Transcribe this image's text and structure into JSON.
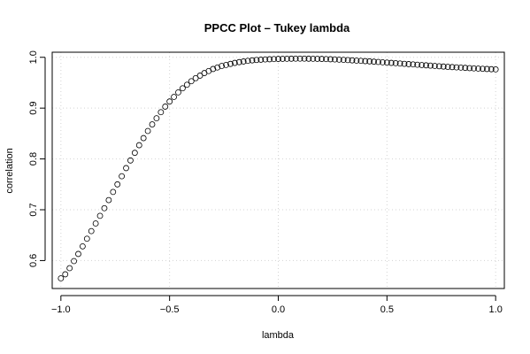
{
  "chart_data": {
    "type": "scatter",
    "title": "PPCC Plot – Tukey lambda",
    "xlabel": "lambda",
    "ylabel": "correlation",
    "xlim": [
      -1.04,
      1.04
    ],
    "ylim": [
      0.545,
      1.01
    ],
    "x_ticks": [
      -1.0,
      -0.5,
      0.0,
      0.5,
      1.0
    ],
    "x_tick_labels": [
      "−1.0",
      "−0.5",
      "0.0",
      "0.5",
      "1.0"
    ],
    "y_ticks": [
      0.6,
      0.7,
      0.8,
      0.9,
      1.0
    ],
    "y_tick_labels": [
      "0.6",
      "0.7",
      "0.8",
      "0.9",
      "1.0"
    ],
    "grid": true,
    "marker": "open-circle",
    "series": [
      {
        "x": [
          -1.0,
          -0.98,
          -0.96,
          -0.94,
          -0.92,
          -0.9,
          -0.88,
          -0.86,
          -0.84,
          -0.82,
          -0.8,
          -0.78,
          -0.76,
          -0.74,
          -0.72,
          -0.7,
          -0.68,
          -0.66,
          -0.64,
          -0.62,
          -0.6,
          -0.58,
          -0.56,
          -0.54,
          -0.52,
          -0.5,
          -0.48,
          -0.46,
          -0.44,
          -0.42,
          -0.4,
          -0.38,
          -0.36,
          -0.34,
          -0.32,
          -0.3,
          -0.28,
          -0.26,
          -0.24,
          -0.22,
          -0.2,
          -0.18,
          -0.16,
          -0.14,
          -0.12,
          -0.1,
          -0.08,
          -0.06,
          -0.04,
          -0.02,
          0.0,
          0.02,
          0.04,
          0.06,
          0.08,
          0.1,
          0.12,
          0.14,
          0.16,
          0.18,
          0.2,
          0.22,
          0.24,
          0.26,
          0.28,
          0.3,
          0.32,
          0.34,
          0.36,
          0.38,
          0.4,
          0.42,
          0.44,
          0.46,
          0.48,
          0.5,
          0.52,
          0.54,
          0.56,
          0.58,
          0.6,
          0.62,
          0.64,
          0.66,
          0.68,
          0.7,
          0.72,
          0.74,
          0.76,
          0.78,
          0.8,
          0.82,
          0.84,
          0.86,
          0.88,
          0.9,
          0.92,
          0.94,
          0.96,
          0.98,
          1.0
        ],
        "y": [
          0.565,
          0.573,
          0.585,
          0.599,
          0.613,
          0.628,
          0.643,
          0.658,
          0.673,
          0.688,
          0.703,
          0.719,
          0.735,
          0.75,
          0.766,
          0.782,
          0.797,
          0.812,
          0.827,
          0.841,
          0.855,
          0.868,
          0.88,
          0.892,
          0.903,
          0.913,
          0.922,
          0.931,
          0.939,
          0.946,
          0.953,
          0.959,
          0.964,
          0.969,
          0.973,
          0.977,
          0.98,
          0.983,
          0.985,
          0.987,
          0.989,
          0.9905,
          0.9918,
          0.993,
          0.994,
          0.9947,
          0.9953,
          0.9958,
          0.9962,
          0.9965,
          0.9968,
          0.997,
          0.9972,
          0.9973,
          0.9974,
          0.9974,
          0.9974,
          0.9973,
          0.9972,
          0.997,
          0.9968,
          0.9965,
          0.9962,
          0.9958,
          0.9954,
          0.995,
          0.9945,
          0.994,
          0.9935,
          0.993,
          0.9925,
          0.992,
          0.9914,
          0.9908,
          0.9902,
          0.9896,
          0.989,
          0.9884,
          0.9878,
          0.9872,
          0.9866,
          0.986,
          0.9854,
          0.9848,
          0.9842,
          0.9836,
          0.983,
          0.9824,
          0.9818,
          0.9812,
          0.9807,
          0.9802,
          0.9797,
          0.9792,
          0.9787,
          0.9782,
          0.9778,
          0.9774,
          0.977,
          0.9766,
          0.9762
        ]
      }
    ]
  }
}
